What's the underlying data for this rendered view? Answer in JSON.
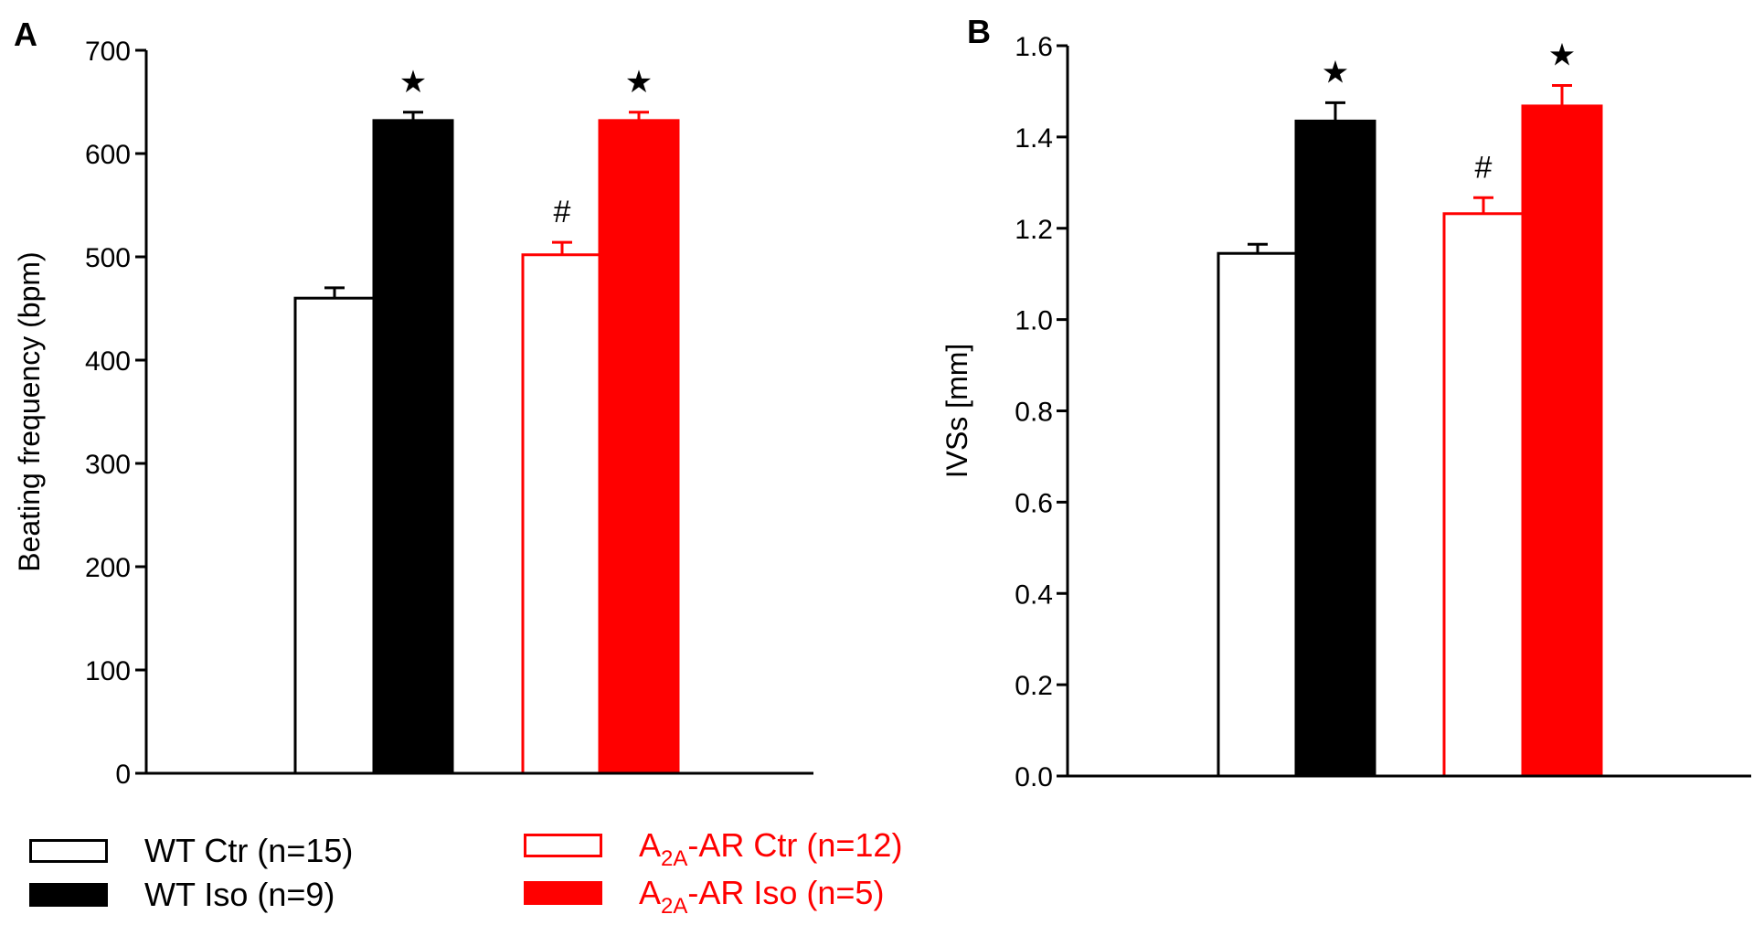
{
  "chart_data": [
    {
      "panel_label": "A",
      "type": "bar",
      "title": "",
      "xlabel": "",
      "ylabel": "Beating frequency (bpm)",
      "ylim": [
        0,
        700
      ],
      "yticks": [
        "0",
        "100",
        "200",
        "300",
        "400",
        "500",
        "600",
        "700"
      ],
      "categories": [
        "WT Ctr (n=15)",
        "WT Iso (n=9)",
        "A2A-AR Ctr (n=12)",
        "A2A-AR Iso (n=5)"
      ],
      "values": [
        460,
        632,
        502,
        632
      ],
      "errors": [
        10,
        8,
        12,
        8
      ],
      "annotations": [
        "",
        "★",
        "#",
        "★"
      ],
      "grid": false
    },
    {
      "panel_label": "B",
      "type": "bar",
      "title": "",
      "xlabel": "",
      "ylabel": "IVSs [mm]",
      "ylim": [
        0,
        1.6
      ],
      "yticks": [
        "0.0",
        "0.2",
        "0.4",
        "0.6",
        "0.8",
        "1.0",
        "1.2",
        "1.4",
        "1.6"
      ],
      "categories": [
        "WT Ctr (n=15)",
        "WT Iso (n=9)",
        "A2A-AR Ctr (n=12)",
        "A2A-AR Iso (n=5)"
      ],
      "values": [
        1.145,
        1.435,
        1.232,
        1.468
      ],
      "errors": [
        0.02,
        0.04,
        0.035,
        0.045
      ],
      "annotations": [
        "",
        "★",
        "#",
        "★"
      ],
      "grid": false
    }
  ],
  "series_styles": [
    {
      "fill": "#ffffff",
      "stroke": "#000000"
    },
    {
      "fill": "#000000",
      "stroke": "#000000"
    },
    {
      "fill": "#ffffff",
      "stroke": "#ff0000"
    },
    {
      "fill": "#ff0000",
      "stroke": "#ff0000"
    }
  ],
  "legend": {
    "items": [
      {
        "prefix": "WT Ctr (n=15)",
        "sub": "",
        "suffix": "",
        "color": "#000000",
        "fill": "#ffffff"
      },
      {
        "prefix": "WT Iso (n=9)",
        "sub": "",
        "suffix": "",
        "color": "#000000",
        "fill": "#000000"
      },
      {
        "prefix": "A",
        "sub": "2A",
        "suffix": "-AR Ctr (n=12)",
        "color": "#ff0000",
        "fill": "#ffffff"
      },
      {
        "prefix": "A",
        "sub": "2A",
        "suffix": "-AR Iso (n=5)",
        "color": "#ff0000",
        "fill": "#ff0000"
      }
    ]
  }
}
